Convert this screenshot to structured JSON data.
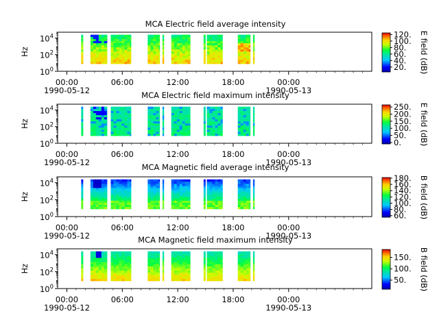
{
  "chart_data": [
    {
      "type": "heatmap",
      "title": "MCA  Electric field average intensity",
      "ylabel": "Hz",
      "yticks": [
        {
          "base": "10",
          "exp": "0"
        },
        {
          "base": "10",
          "exp": "2"
        },
        {
          "base": "10",
          "exp": "4"
        }
      ],
      "ylim_log10": [
        0,
        4.7
      ],
      "y_data_log10": [
        0.9,
        4.4
      ],
      "xlim_hours": [
        -1,
        33
      ],
      "xticks": [
        "00:00",
        "06:00",
        "12:00",
        "18:00",
        "00:00"
      ],
      "xtick_hours": [
        0,
        6,
        12,
        18,
        24
      ],
      "date_labels": [
        "1990-05-12",
        "1990-05-13"
      ],
      "colorbar": {
        "label": "E field (dB)",
        "min": 5,
        "max": 125,
        "ticks": [
          "20.",
          "40.",
          "60.",
          "80.",
          "100.",
          "120."
        ],
        "tick_values": [
          20,
          40,
          60,
          80,
          100,
          120
        ]
      },
      "data_segments_hours": [
        [
          1.55,
          1.75
        ],
        [
          2.55,
          4.35
        ],
        [
          4.75,
          6.95
        ],
        [
          8.75,
          10.05
        ],
        [
          10.35,
          10.5
        ],
        [
          11.3,
          13.35
        ],
        [
          14.8,
          15.0
        ],
        [
          15.15,
          16.85
        ],
        [
          18.5,
          19.85
        ],
        [
          20.15,
          20.3
        ]
      ],
      "profile": "eavg"
    },
    {
      "type": "heatmap",
      "title": "MCA  Electric field maximum intensity",
      "ylabel": "Hz",
      "yticks": [
        {
          "base": "10",
          "exp": "0"
        },
        {
          "base": "10",
          "exp": "2"
        },
        {
          "base": "10",
          "exp": "4"
        }
      ],
      "ylim_log10": [
        0,
        4.7
      ],
      "y_data_log10": [
        0.9,
        4.4
      ],
      "xlim_hours": [
        -1,
        33
      ],
      "xticks": [
        "00:00",
        "06:00",
        "12:00",
        "18:00",
        "00:00"
      ],
      "xtick_hours": [
        0,
        6,
        12,
        18,
        24
      ],
      "date_labels": [
        "1990-05-12",
        "1990-05-13"
      ],
      "colorbar": {
        "label": "E field (dB)",
        "min": -10,
        "max": 265,
        "ticks": [
          "0.",
          "50.",
          "100.",
          "150.",
          "200.",
          "250."
        ],
        "tick_values": [
          0,
          50,
          100,
          150,
          200,
          250
        ]
      },
      "data_segments_hours": [
        [
          1.55,
          1.75
        ],
        [
          2.55,
          4.35
        ],
        [
          4.75,
          6.95
        ],
        [
          8.75,
          10.05
        ],
        [
          10.35,
          10.5
        ],
        [
          11.3,
          13.35
        ],
        [
          14.8,
          15.0
        ],
        [
          15.15,
          16.85
        ],
        [
          18.5,
          19.85
        ],
        [
          20.15,
          20.3
        ]
      ],
      "profile": "emax"
    },
    {
      "type": "heatmap",
      "title": "MCA  Magnetic field average intensity",
      "ylabel": "Hz",
      "yticks": [
        {
          "base": "10",
          "exp": "0"
        },
        {
          "base": "10",
          "exp": "2"
        },
        {
          "base": "10",
          "exp": "4"
        }
      ],
      "ylim_log10": [
        0,
        4.7
      ],
      "y_data_log10": [
        0.9,
        4.4
      ],
      "xlim_hours": [
        -1,
        33
      ],
      "xticks": [
        "00:00",
        "06:00",
        "12:00",
        "18:00",
        "00:00"
      ],
      "xtick_hours": [
        0,
        6,
        12,
        18,
        24
      ],
      "date_labels": [
        "1990-05-12",
        "1990-05-13"
      ],
      "colorbar": {
        "label": "B field (dB)",
        "min": 55,
        "max": 182,
        "ticks": [
          "60.",
          "80.",
          "100.",
          "120.",
          "140.",
          "160.",
          "180."
        ],
        "tick_values": [
          60,
          80,
          100,
          120,
          140,
          160,
          180
        ]
      },
      "data_segments_hours": [
        [
          1.55,
          1.75
        ],
        [
          2.55,
          4.35
        ],
        [
          4.75,
          6.95
        ],
        [
          8.75,
          10.05
        ],
        [
          10.35,
          10.5
        ],
        [
          11.3,
          13.35
        ],
        [
          14.8,
          15.0
        ],
        [
          15.15,
          16.85
        ],
        [
          18.5,
          19.85
        ],
        [
          20.15,
          20.3
        ]
      ],
      "profile": "bavg"
    },
    {
      "type": "heatmap",
      "title": "MCA  Magnetic field maximum intensity",
      "ylabel": "Hz",
      "yticks": [
        {
          "base": "10",
          "exp": "0"
        },
        {
          "base": "10",
          "exp": "2"
        },
        {
          "base": "10",
          "exp": "4"
        }
      ],
      "ylim_log10": [
        0,
        4.7
      ],
      "y_data_log10": [
        0.9,
        4.4
      ],
      "xlim_hours": [
        -1,
        33
      ],
      "xticks": [
        "00:00",
        "06:00",
        "12:00",
        "18:00",
        "00:00"
      ],
      "xtick_hours": [
        0,
        6,
        12,
        18,
        24
      ],
      "date_labels": [
        "1990-05-12",
        "1990-05-13"
      ],
      "colorbar": {
        "label": "B field (dB)",
        "min": 10,
        "max": 185,
        "ticks": [
          "50.",
          "100.",
          "150."
        ],
        "tick_values": [
          50,
          100,
          150
        ]
      },
      "data_segments_hours": [
        [
          1.55,
          1.75
        ],
        [
          2.55,
          4.35
        ],
        [
          4.75,
          6.95
        ],
        [
          8.75,
          10.05
        ],
        [
          10.35,
          10.5
        ],
        [
          11.3,
          13.35
        ],
        [
          14.8,
          15.0
        ],
        [
          15.15,
          16.85
        ],
        [
          18.5,
          19.85
        ],
        [
          20.15,
          20.3
        ]
      ],
      "profile": "bmax"
    }
  ]
}
